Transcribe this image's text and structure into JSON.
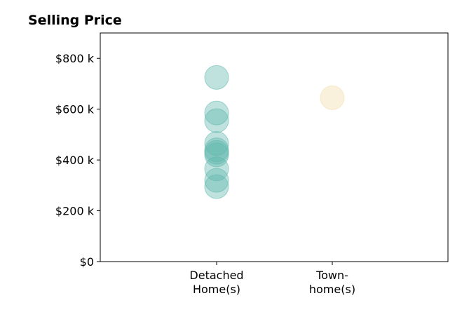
{
  "chart_data": {
    "type": "scatter",
    "title": "Selling Price",
    "xlabel": "",
    "ylabel": "",
    "ylim": [
      0,
      900000
    ],
    "y_ticks": [
      {
        "value": 0,
        "label": "$0"
      },
      {
        "value": 200000,
        "label": "$200 k"
      },
      {
        "value": 400000,
        "label": "$400 k"
      },
      {
        "value": 600000,
        "label": "$600 k"
      },
      {
        "value": 800000,
        "label": "$800 k"
      }
    ],
    "categories": [
      {
        "key": "detached",
        "label_lines": [
          "Detached",
          "Home(s)"
        ]
      },
      {
        "key": "townhome",
        "label_lines": [
          "Town-",
          "home(s)"
        ]
      }
    ],
    "series": [
      {
        "category": "detached",
        "color": "#5fb7ad",
        "values": [
          725000,
          585000,
          555000,
          465000,
          440000,
          430000,
          420000,
          365000,
          320000,
          295000
        ]
      },
      {
        "category": "townhome",
        "color": "#f3dcaa",
        "values": [
          645000
        ]
      }
    ],
    "grid": false,
    "legend": "none"
  }
}
